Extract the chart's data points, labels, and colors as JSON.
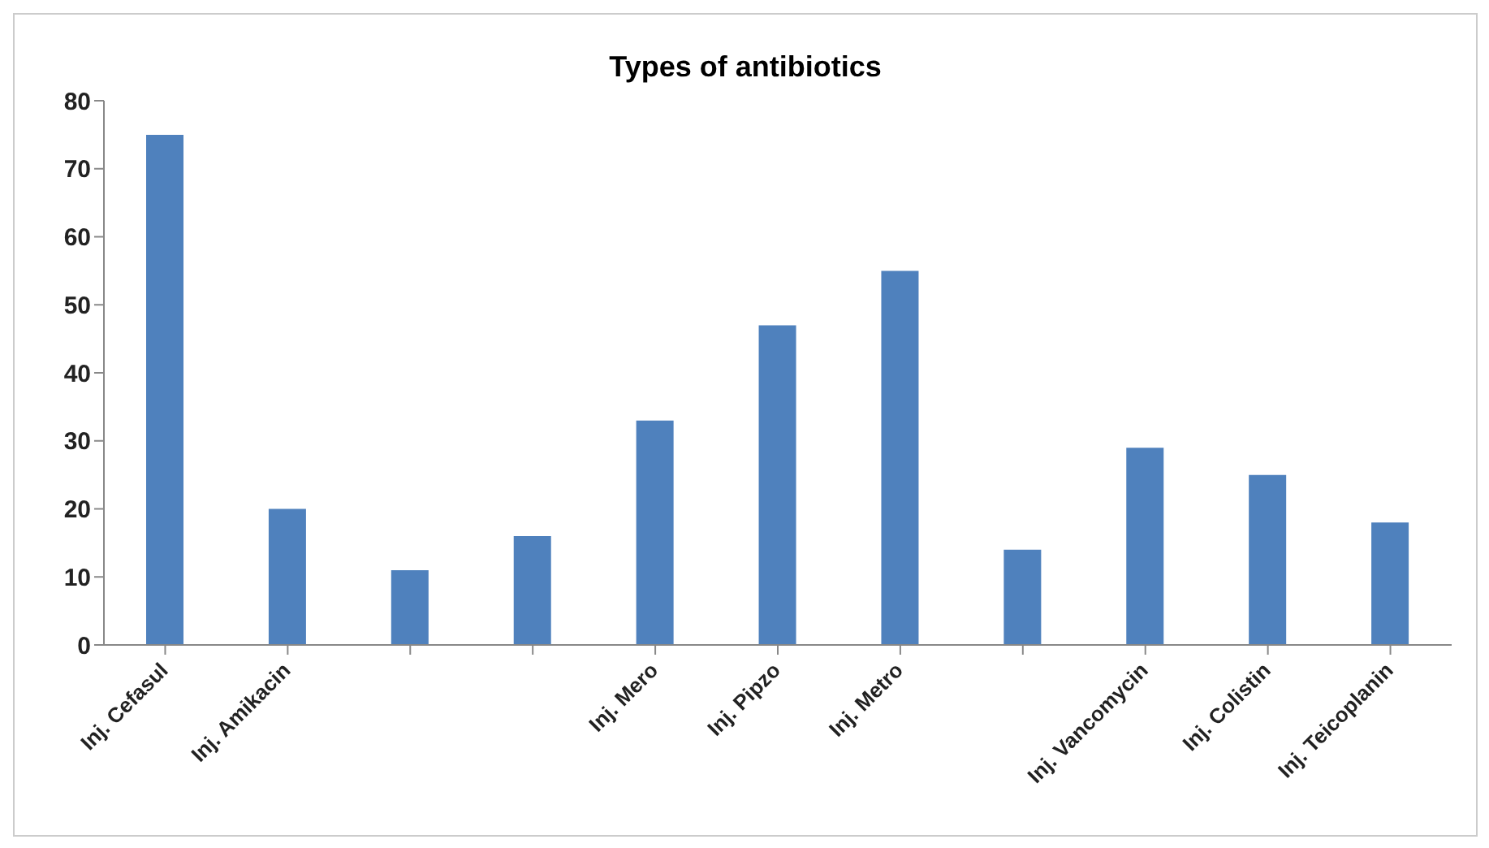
{
  "chart_data": {
    "type": "bar",
    "title": "Types of antibiotics",
    "categories": [
      "Inj. Cefasul",
      "Inj.  Amikacin",
      null,
      null,
      "Inj. Mero",
      "Inj. Pipzo",
      "Inj. Metro",
      null,
      "Inj. Vancomycin",
      "Inj. Colistin",
      "Inj. Teicoplanin"
    ],
    "values": [
      75,
      20,
      11,
      16,
      33,
      47,
      55,
      14,
      29,
      25,
      18
    ],
    "color": "#4f81bd",
    "ylim": [
      0,
      80
    ],
    "yticks": [
      0,
      10,
      20,
      30,
      40,
      50,
      60,
      70,
      80
    ],
    "grid": false
  }
}
